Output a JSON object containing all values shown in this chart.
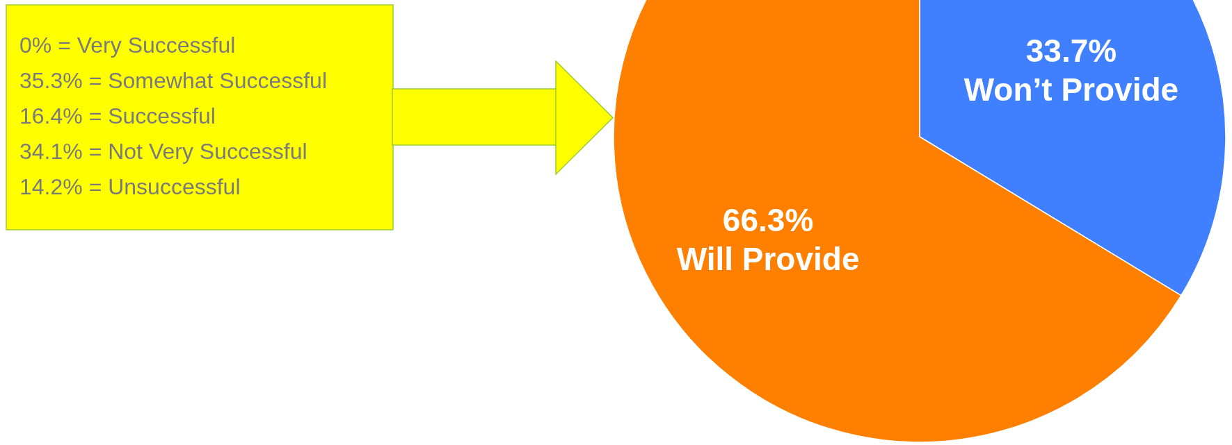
{
  "chart_data": {
    "type": "pie",
    "categories": [
      "Won’t Provide",
      "Will Provide"
    ],
    "values": [
      33.7,
      66.3
    ],
    "colors": [
      "#4080ff",
      "#ff7f00"
    ],
    "value_labels": [
      "33.7%",
      "66.3%"
    ],
    "annotations": [
      "0% = Very Successful",
      "35.3% = Somewhat Successful",
      "16.4% = Successful",
      "34.1% = Not Very Successful",
      "14.2% = Unsuccessful"
    ]
  }
}
